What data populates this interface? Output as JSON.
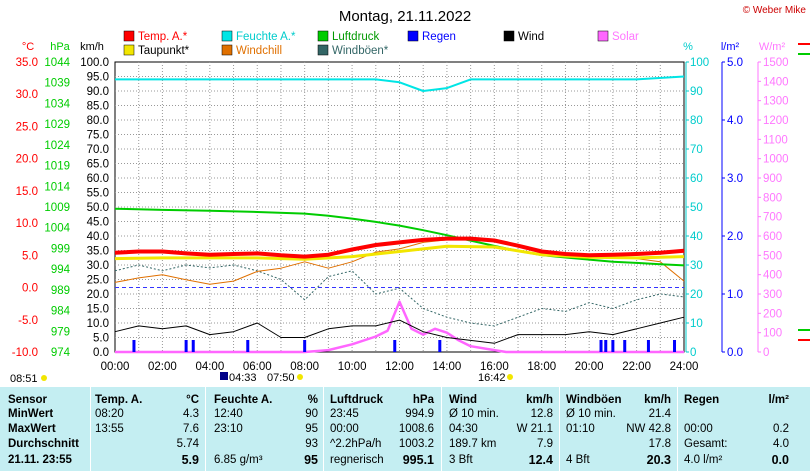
{
  "title": "Montag, 21.11.2022",
  "copyright": "© Weber Mike",
  "colors": {
    "temp": "#ff0000",
    "humidity": "#00e5e5",
    "pressure": "#00cc00",
    "wind": "#000000",
    "dewpoint": "#f2e600",
    "windchill": "#e07000",
    "gusts": "#336666",
    "rain": "#0000ff",
    "solar": "#ff66ff"
  },
  "chart_data": {
    "type": "line",
    "title": "Montag, 21.11.2022",
    "x_unit": "hours",
    "x_range": [
      0,
      24
    ],
    "x_ticks": [
      "00:00",
      "02:00",
      "04:00",
      "06:00",
      "08:00",
      "10:00",
      "12:00",
      "14:00",
      "16:00",
      "18:00",
      "20:00",
      "22:00",
      "24:00"
    ],
    "grid": true,
    "legend": [
      {
        "name": "Temp. A.*",
        "color": "#ff0000"
      },
      {
        "name": "Feuchte A.*",
        "color": "#00e5e5"
      },
      {
        "name": "Luftdruck",
        "color": "#00cc00"
      },
      {
        "name": "Regen",
        "color": "#0000ff"
      },
      {
        "name": "Wind",
        "color": "#000000"
      },
      {
        "name": "Solar",
        "color": "#ff66ff"
      },
      {
        "name": "Taupunkt*",
        "color": "#f2e600"
      },
      {
        "name": "Windchill",
        "color": "#e07000"
      },
      {
        "name": "Windböen*",
        "color": "#336666"
      }
    ],
    "axes": {
      "temp": {
        "unit": "°C",
        "range": [
          -10,
          35
        ],
        "ticks": [
          "-10.0",
          "-5.0",
          "0.0",
          "5.0",
          "10.0",
          "15.0",
          "20.0",
          "25.0",
          "30.0",
          "35.0"
        ]
      },
      "pressure": {
        "unit": "hPa",
        "range": [
          974,
          1044
        ],
        "ticks": [
          "974",
          "979",
          "984",
          "989",
          "994",
          "999",
          "1004",
          "1009",
          "1014",
          "1019",
          "1024",
          "1029",
          "1034",
          "1039",
          "1044"
        ]
      },
      "wind": {
        "unit": "km/h",
        "range": [
          0,
          100
        ],
        "ticks": [
          "0.0",
          "5.0",
          "10.0",
          "15.0",
          "20.0",
          "25.0",
          "30.0",
          "35.0",
          "40.0",
          "45.0",
          "50.0",
          "55.0",
          "60.0",
          "65.0",
          "70.0",
          "75.0",
          "80.0",
          "85.0",
          "90.0",
          "95.0",
          "100.0"
        ]
      },
      "humidity": {
        "unit": "%",
        "range": [
          0,
          100
        ],
        "ticks": [
          "0",
          "10",
          "20",
          "30",
          "40",
          "50",
          "60",
          "70",
          "80",
          "90",
          "100"
        ]
      },
      "rain": {
        "unit": "l/m²",
        "range": [
          0,
          5
        ],
        "ticks": [
          "0.0",
          "1.0",
          "2.0",
          "3.0",
          "4.0",
          "5.0"
        ]
      },
      "solar": {
        "unit": "W/m²",
        "range": [
          0,
          1500
        ],
        "ticks": [
          "0",
          "100",
          "200",
          "300",
          "400",
          "500",
          "600",
          "700",
          "800",
          "900",
          "1000",
          "1100",
          "1200",
          "1300",
          "1400",
          "1500"
        ]
      }
    },
    "series": [
      {
        "name": "Temp. A.*",
        "axis": "temp",
        "x": [
          0,
          1,
          2,
          3,
          4,
          5,
          6,
          7,
          8,
          9,
          10,
          11,
          12,
          13,
          14,
          15,
          16,
          17,
          18,
          19,
          20,
          21,
          22,
          23,
          24
        ],
        "values": [
          5.4,
          5.6,
          5.6,
          5.3,
          5.1,
          5.2,
          5.3,
          5.0,
          4.8,
          5.1,
          5.9,
          6.6,
          7.0,
          7.4,
          7.6,
          7.6,
          7.3,
          6.5,
          5.6,
          5.2,
          5.0,
          5.1,
          5.2,
          5.4,
          5.7
        ]
      },
      {
        "name": "Taupunkt*",
        "axis": "temp",
        "x": [
          0,
          2,
          4,
          6,
          8,
          10,
          12,
          14,
          16,
          18,
          20,
          22,
          24
        ],
        "values": [
          4.5,
          4.6,
          4.6,
          4.6,
          4.4,
          4.8,
          5.6,
          6.4,
          6.3,
          5.1,
          4.7,
          4.6,
          4.8
        ]
      },
      {
        "name": "Feuchte A.*",
        "axis": "humidity",
        "x": [
          0,
          2,
          4,
          6,
          8,
          10,
          11,
          12,
          13,
          14,
          15,
          16,
          18,
          20,
          22,
          24
        ],
        "values": [
          94,
          94,
          94,
          94,
          94,
          94,
          94,
          93,
          90,
          91,
          94,
          94,
          94,
          94,
          94,
          95
        ]
      },
      {
        "name": "Luftdruck",
        "axis": "pressure",
        "x": [
          0,
          2,
          4,
          6,
          8,
          9,
          10,
          11,
          12,
          13,
          14,
          15,
          16,
          17,
          18,
          19,
          20,
          21,
          22,
          23,
          24
        ],
        "values": [
          1008.6,
          1008.3,
          1008.1,
          1007.8,
          1007.4,
          1006.9,
          1006.2,
          1005.4,
          1004.5,
          1003.4,
          1002.2,
          1000.9,
          999.6,
          998.4,
          997.4,
          996.8,
          996.3,
          995.8,
          995.5,
          995.2,
          994.9
        ]
      },
      {
        "name": "Wind",
        "axis": "wind",
        "x": [
          0,
          1,
          2,
          3,
          4,
          5,
          6,
          7,
          8,
          9,
          10,
          11,
          12,
          13,
          14,
          15,
          16,
          17,
          18,
          19,
          20,
          21,
          22,
          23,
          24
        ],
        "values": [
          7,
          9,
          8,
          9,
          6,
          7,
          10,
          5,
          5,
          8,
          9,
          9,
          11,
          7,
          5,
          4,
          3,
          6,
          6,
          6,
          7,
          6,
          8,
          10,
          12
        ]
      },
      {
        "name": "Windböen*",
        "axis": "wind",
        "x": [
          0,
          1,
          2,
          3,
          4,
          5,
          6,
          7,
          8,
          9,
          10,
          11,
          12,
          13,
          14,
          15,
          16,
          17,
          18,
          19,
          20,
          21,
          22,
          23,
          24
        ],
        "values": [
          28,
          30,
          28,
          30,
          29,
          30,
          28,
          25,
          18,
          26,
          28,
          20,
          22,
          15,
          12,
          10,
          9,
          12,
          15,
          14,
          17,
          15,
          18,
          20,
          19
        ]
      },
      {
        "name": "Windchill",
        "axis": "temp",
        "x": [
          0,
          1,
          2,
          3,
          4,
          5,
          6,
          7,
          8,
          9,
          10,
          11,
          12,
          13,
          14,
          15,
          16,
          17,
          18,
          19,
          20,
          21,
          22,
          23,
          24
        ],
        "values": [
          0.8,
          1.5,
          2.0,
          1.2,
          0.5,
          1.0,
          2.5,
          3.0,
          4.0,
          3.0,
          4.0,
          5.5,
          6.0,
          7.0,
          7.4,
          7.6,
          7.2,
          6.5,
          5.6,
          5.2,
          5.0,
          5.0,
          4.5,
          4.0,
          1.0
        ]
      },
      {
        "name": "Solar",
        "axis": "solar",
        "x": [
          0,
          8,
          9,
          10,
          11,
          11.5,
          12,
          12.5,
          13,
          13.5,
          14,
          14.5,
          15,
          16,
          16.5,
          24
        ],
        "values": [
          0,
          0,
          10,
          40,
          80,
          110,
          260,
          120,
          90,
          120,
          100,
          60,
          30,
          10,
          0,
          0
        ]
      }
    ],
    "rain_events": [
      0.8,
      3.0,
      3.3,
      5.6,
      8.0,
      11.8,
      13.7,
      20.5,
      20.7,
      21.0,
      21.5,
      22.5,
      23.6
    ]
  },
  "sun_marks": [
    {
      "label": "08:51"
    },
    {
      "label": "04:33"
    },
    {
      "label": "07:50"
    },
    {
      "label": "16:42"
    }
  ],
  "stats": {
    "headers": [
      "Sensor",
      "Temp. A.",
      "°C",
      "Feuchte A.",
      "%",
      "Luftdruck",
      "hPa",
      "Wind",
      "km/h",
      "Windböen",
      "km/h",
      "Regen",
      "l/m²"
    ],
    "rows": [
      {
        "label": "MinWert",
        "cells": [
          "08:20",
          "4.3",
          "12:40",
          "90",
          "23:45",
          "994.9",
          "Ø 10 min.",
          "12.8",
          "Ø 10 min.",
          "21.4",
          "",
          ""
        ]
      },
      {
        "label": "MaxWert",
        "cells": [
          "13:55",
          "7.6",
          "23:10",
          "95",
          "00:00",
          "1008.6",
          "04:30",
          "W 21.1",
          "01:10",
          "NW 42.8",
          "00:00",
          "0.2"
        ]
      },
      {
        "label": "Durchschnitt",
        "cells": [
          "",
          "5.74",
          "",
          "93",
          "^2.2hPa/h",
          "1003.2",
          "189.7 km",
          "7.9",
          "",
          "17.8",
          "Gesamt:",
          "4.0"
        ]
      },
      {
        "label": "21.11. 23:55",
        "cells": [
          "",
          "5.9",
          "6.85 g/m³",
          "95",
          "regnerisch",
          "995.1",
          "3 Bft",
          "12.4",
          "4 Bft",
          "20.3",
          "4.0 l/m²",
          "0.0"
        ]
      }
    ]
  }
}
